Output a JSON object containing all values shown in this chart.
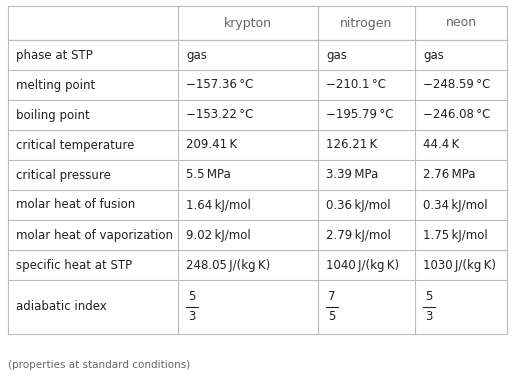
{
  "columns": [
    "",
    "krypton",
    "nitrogen",
    "neon"
  ],
  "rows": [
    {
      "property": "phase at STP",
      "vals": [
        "gas",
        "gas",
        "gas"
      ],
      "is_fraction": false
    },
    {
      "property": "melting point",
      "vals": [
        "−157.36 °C",
        "−210.1 °C",
        "−248.59 °C"
      ],
      "is_fraction": false
    },
    {
      "property": "boiling point",
      "vals": [
        "−153.22 °C",
        "−195.79 °C",
        "−246.08 °C"
      ],
      "is_fraction": false
    },
    {
      "property": "critical temperature",
      "vals": [
        "209.41 K",
        "126.21 K",
        "44.4 K"
      ],
      "is_fraction": false
    },
    {
      "property": "critical pressure",
      "vals": [
        "5.5 MPa",
        "3.39 MPa",
        "2.76 MPa"
      ],
      "is_fraction": false
    },
    {
      "property": "molar heat of fusion",
      "vals": [
        "1.64 kJ/mol",
        "0.36 kJ/mol",
        "0.34 kJ/mol"
      ],
      "is_fraction": false
    },
    {
      "property": "molar heat of vaporization",
      "vals": [
        "9.02 kJ/mol",
        "2.79 kJ/mol",
        "1.75 kJ/mol"
      ],
      "is_fraction": false
    },
    {
      "property": "specific heat at STP",
      "vals": [
        "248.05 J/(kg K)",
        "1040 J/(kg K)",
        "1030 J/(kg K)"
      ],
      "is_fraction": false
    },
    {
      "property": "adiabatic index",
      "nums": [
        "5",
        "7",
        "5"
      ],
      "dens": [
        "3",
        "5",
        "3"
      ],
      "is_fraction": true
    }
  ],
  "footer": "(properties at standard conditions)",
  "bg_color": "#ffffff",
  "header_text_color": "#666666",
  "row_text_color": "#222222",
  "grid_color": "#bbbbbb",
  "font_size": 8.5,
  "header_font_size": 9.0,
  "footer_font_size": 7.5
}
